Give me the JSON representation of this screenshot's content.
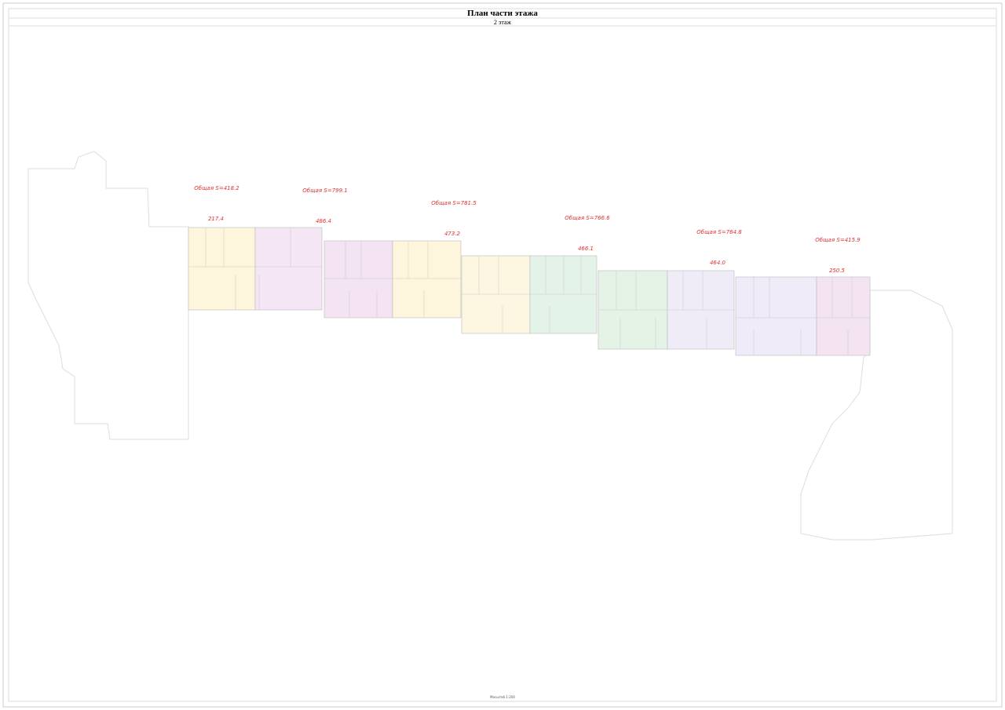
{
  "header": {
    "title": "План части этажа",
    "subtitle": "2 этаж"
  },
  "sections": [
    {
      "total_area": "Общая S=418.2",
      "area": "217.4"
    },
    {
      "total_area": "Общая S=799.1",
      "area": "486.4"
    },
    {
      "total_area": "Общая S=781.5",
      "area": "473.2"
    },
    {
      "total_area": "Общая S=766.6",
      "area": "466.1"
    },
    {
      "total_area": "Общая S=764.8",
      "area": "464.0"
    },
    {
      "total_area": "Общая S=415.9",
      "area": "250.5"
    }
  ],
  "footer": "Масштаб 1:200"
}
